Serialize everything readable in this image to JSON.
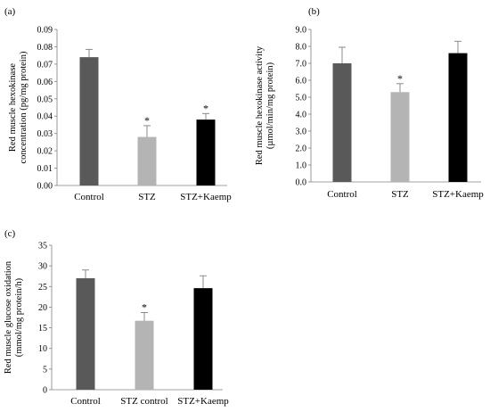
{
  "chart_data": [
    {
      "panel": "(a)",
      "type": "bar",
      "categories": [
        "Control",
        "STZ",
        "STZ+Kaemp"
      ],
      "values": [
        0.074,
        0.028,
        0.038
      ],
      "errors": [
        0.0045,
        0.0065,
        0.0035
      ],
      "significant": [
        "",
        "*",
        "*"
      ],
      "ylabel": [
        "Red muscle hexokinase",
        "concentration (pg/mg protein)"
      ],
      "ylim": [
        0,
        0.09
      ],
      "yticks": [
        "0.00",
        "0.01",
        "0.02",
        "0.03",
        "0.04",
        "0.05",
        "0.06",
        "0.07",
        "0.08",
        "0.09"
      ],
      "grid": false,
      "bar_colors": [
        "#595959",
        "#b4b4b4",
        "#000000"
      ]
    },
    {
      "panel": "(b)",
      "type": "bar",
      "categories": [
        "Control",
        "STZ",
        "STZ+Kaemp"
      ],
      "values": [
        7.0,
        5.3,
        7.6
      ],
      "errors": [
        0.95,
        0.5,
        0.7
      ],
      "significant": [
        "",
        "*",
        ""
      ],
      "ylabel": [
        "Red muscle hexokinase activity",
        "(µmol/min/mg protein)"
      ],
      "ylim": [
        0,
        9
      ],
      "yticks": [
        "0.0",
        "1.0",
        "2.0",
        "3.0",
        "4.0",
        "5.0",
        "6.0",
        "7.0",
        "8.0",
        "9.0"
      ],
      "grid": false,
      "bar_colors": [
        "#595959",
        "#b4b4b4",
        "#000000"
      ]
    },
    {
      "panel": "(c)",
      "type": "bar",
      "categories": [
        "Control",
        "STZ control",
        "STZ+Kaemp"
      ],
      "values": [
        27,
        16.7,
        24.6
      ],
      "errors": [
        2.0,
        2.0,
        3.0
      ],
      "significant": [
        "",
        "*",
        ""
      ],
      "ylabel": [
        "Red muscle glucose oxidation",
        "(mmol/mg protein/h)"
      ],
      "ylim": [
        0,
        35
      ],
      "yticks": [
        "0",
        "5",
        "10",
        "15",
        "20",
        "25",
        "30",
        "35"
      ],
      "grid": false,
      "bar_colors": [
        "#595959",
        "#b4b4b4",
        "#000000"
      ]
    }
  ]
}
